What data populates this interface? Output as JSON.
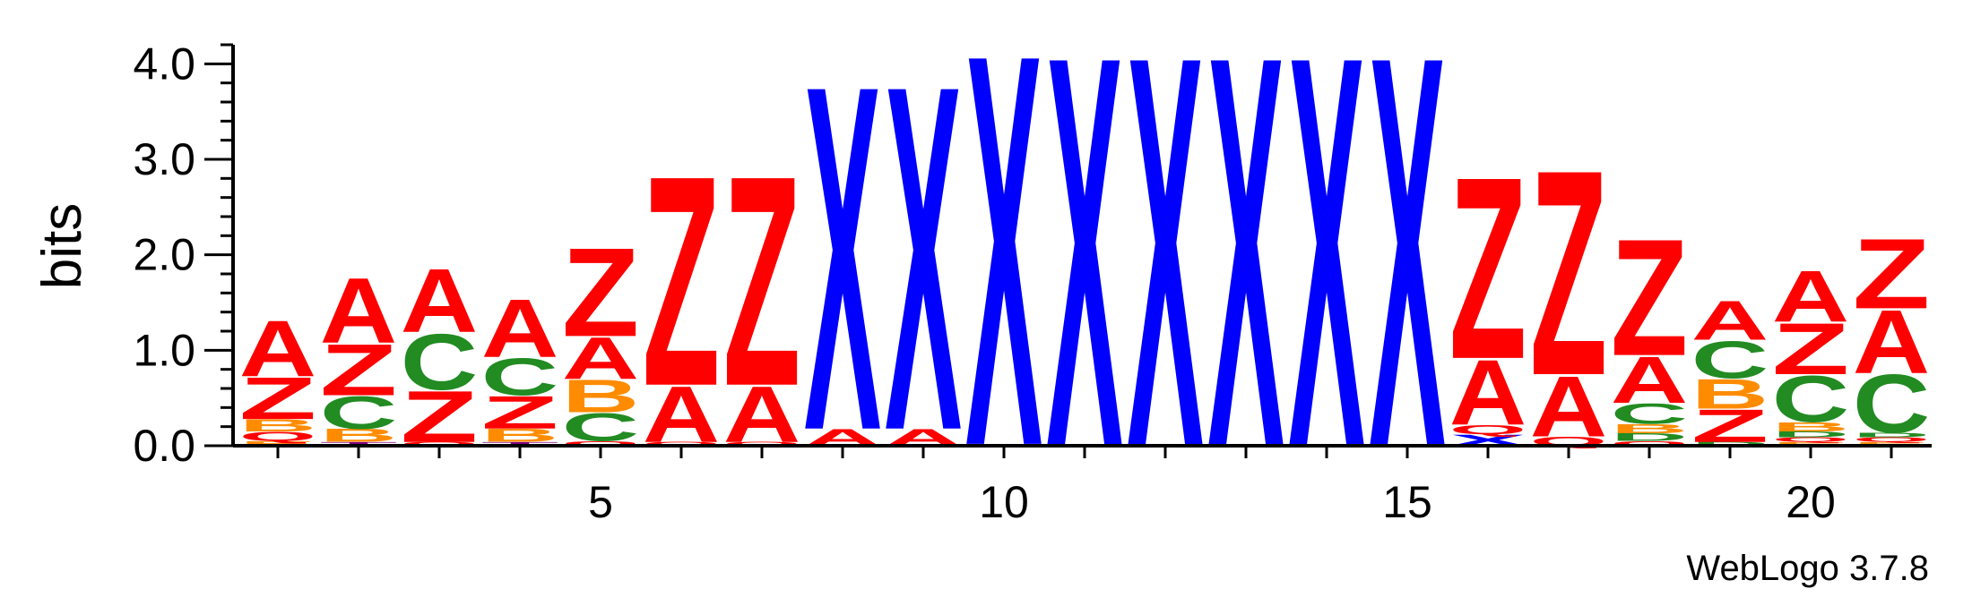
{
  "chart_data": {
    "type": "sequence-logo",
    "ylabel": "bits",
    "ylim": [
      0,
      4.2
    ],
    "y_ticks": [
      "0.0",
      "1.0",
      "2.0",
      "3.0",
      "4.0"
    ],
    "x_range": [
      1,
      21
    ],
    "x_ticks": [
      "5",
      "10",
      "15",
      "20"
    ],
    "x_tick_values": [
      5,
      10,
      15,
      20
    ],
    "credit": "WebLogo 3.7.8",
    "colors": {
      "A": "#ff0000",
      "Z": "#ff0000",
      "Q": "#ff0000",
      "X": "#0000ff",
      "C": "#228b22",
      "D": "#228b22",
      "B": "#ff8c00",
      "E": "#ff8c00",
      "T": "#800080"
    },
    "positions": [
      {
        "pos": 1,
        "stack": [
          [
            "E",
            0.05
          ],
          [
            "Q",
            0.1
          ],
          [
            "B",
            0.13
          ],
          [
            "Z",
            0.45
          ],
          [
            "A",
            0.6
          ]
        ]
      },
      {
        "pos": 2,
        "stack": [
          [
            "T",
            0.04
          ],
          [
            "B",
            0.14
          ],
          [
            "C",
            0.35
          ],
          [
            "Z",
            0.55
          ],
          [
            "A",
            0.7
          ]
        ]
      },
      {
        "pos": 3,
        "stack": [
          [
            "Q",
            0.04
          ],
          [
            "Z",
            0.55
          ],
          [
            "C",
            0.6
          ],
          [
            "A",
            0.68
          ]
        ]
      },
      {
        "pos": 4,
        "stack": [
          [
            "T",
            0.04
          ],
          [
            "B",
            0.14
          ],
          [
            "Z",
            0.35
          ],
          [
            "C",
            0.4
          ],
          [
            "A",
            0.62
          ]
        ]
      },
      {
        "pos": 5,
        "stack": [
          [
            "Q",
            0.05
          ],
          [
            "C",
            0.3
          ],
          [
            "B",
            0.35
          ],
          [
            "A",
            0.45
          ],
          [
            "Z",
            0.95
          ]
        ]
      },
      {
        "pos": 6,
        "stack": [
          [
            "Q",
            0.04
          ],
          [
            "A",
            0.6
          ],
          [
            "Z",
            2.25
          ]
        ]
      },
      {
        "pos": 7,
        "stack": [
          [
            "Q",
            0.04
          ],
          [
            "A",
            0.6
          ],
          [
            "Z",
            2.25
          ]
        ]
      },
      {
        "pos": 8,
        "stack": [
          [
            "A",
            0.18
          ],
          [
            "X",
            3.7
          ]
        ]
      },
      {
        "pos": 9,
        "stack": [
          [
            "A",
            0.18
          ],
          [
            "X",
            3.7
          ]
        ]
      },
      {
        "pos": 10,
        "stack": [
          [
            "A",
            0.02
          ],
          [
            "X",
            4.2
          ]
        ]
      },
      {
        "pos": 11,
        "stack": [
          [
            "X",
            4.2
          ]
        ]
      },
      {
        "pos": 12,
        "stack": [
          [
            "X",
            4.2
          ]
        ]
      },
      {
        "pos": 13,
        "stack": [
          [
            "X",
            4.2
          ]
        ]
      },
      {
        "pos": 14,
        "stack": [
          [
            "X",
            4.2
          ]
        ]
      },
      {
        "pos": 15,
        "stack": [
          [
            "X",
            4.2
          ]
        ]
      },
      {
        "pos": 16,
        "stack": [
          [
            "X",
            0.12
          ],
          [
            "Q",
            0.1
          ],
          [
            "A",
            0.7
          ],
          [
            "Z",
            1.95
          ]
        ]
      },
      {
        "pos": 17,
        "stack": [
          [
            "Q",
            0.1
          ],
          [
            "A",
            0.65
          ],
          [
            "Z",
            2.2
          ]
        ]
      },
      {
        "pos": 18,
        "stack": [
          [
            "Q",
            0.05
          ],
          [
            "D",
            0.08
          ],
          [
            "B",
            0.1
          ],
          [
            "C",
            0.22
          ],
          [
            "A",
            0.5
          ],
          [
            "Z",
            1.25
          ]
        ]
      },
      {
        "pos": 19,
        "stack": [
          [
            "D",
            0.04
          ],
          [
            "Z",
            0.35
          ],
          [
            "B",
            0.32
          ],
          [
            "C",
            0.4
          ],
          [
            "A",
            0.42
          ]
        ]
      },
      {
        "pos": 20,
        "stack": [
          [
            "E",
            0.04
          ],
          [
            "Q",
            0.05
          ],
          [
            "D",
            0.06
          ],
          [
            "B",
            0.1
          ],
          [
            "C",
            0.5
          ],
          [
            "Z",
            0.55
          ],
          [
            "A",
            0.55
          ]
        ]
      },
      {
        "pos": 21,
        "stack": [
          [
            "E",
            0.04
          ],
          [
            "Q",
            0.05
          ],
          [
            "D",
            0.05
          ],
          [
            "C",
            0.62
          ],
          [
            "A",
            0.68
          ],
          [
            "Z",
            0.75
          ]
        ]
      }
    ]
  }
}
